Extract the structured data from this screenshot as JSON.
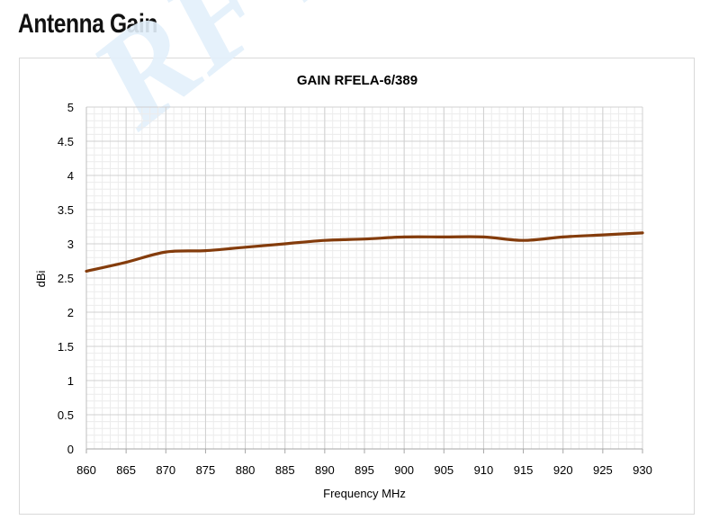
{
  "heading": "Antenna Gain",
  "watermark": "RF Exp",
  "chart_data": {
    "type": "line",
    "title": "GAIN RFELA-6/389",
    "xlabel": "Frequency MHz",
    "ylabel": "dBi",
    "xlim": [
      860,
      930
    ],
    "ylim": [
      0,
      5
    ],
    "x_ticks": [
      860,
      865,
      870,
      875,
      880,
      885,
      890,
      895,
      900,
      905,
      910,
      915,
      920,
      925,
      930
    ],
    "y_ticks": [
      "0",
      "0.5",
      "1",
      "1.5",
      "2",
      "2.5",
      "3",
      "3.5",
      "4",
      "4.5",
      "5"
    ],
    "grid": true,
    "series": [
      {
        "color": "#843c0c",
        "x": [
          860,
          865,
          870,
          875,
          880,
          885,
          890,
          895,
          900,
          905,
          910,
          915,
          920,
          925,
          930
        ],
        "y": [
          2.6,
          2.73,
          2.88,
          2.9,
          2.95,
          3.0,
          3.05,
          3.07,
          3.1,
          3.1,
          3.1,
          3.05,
          3.1,
          3.13,
          3.16
        ]
      }
    ]
  }
}
